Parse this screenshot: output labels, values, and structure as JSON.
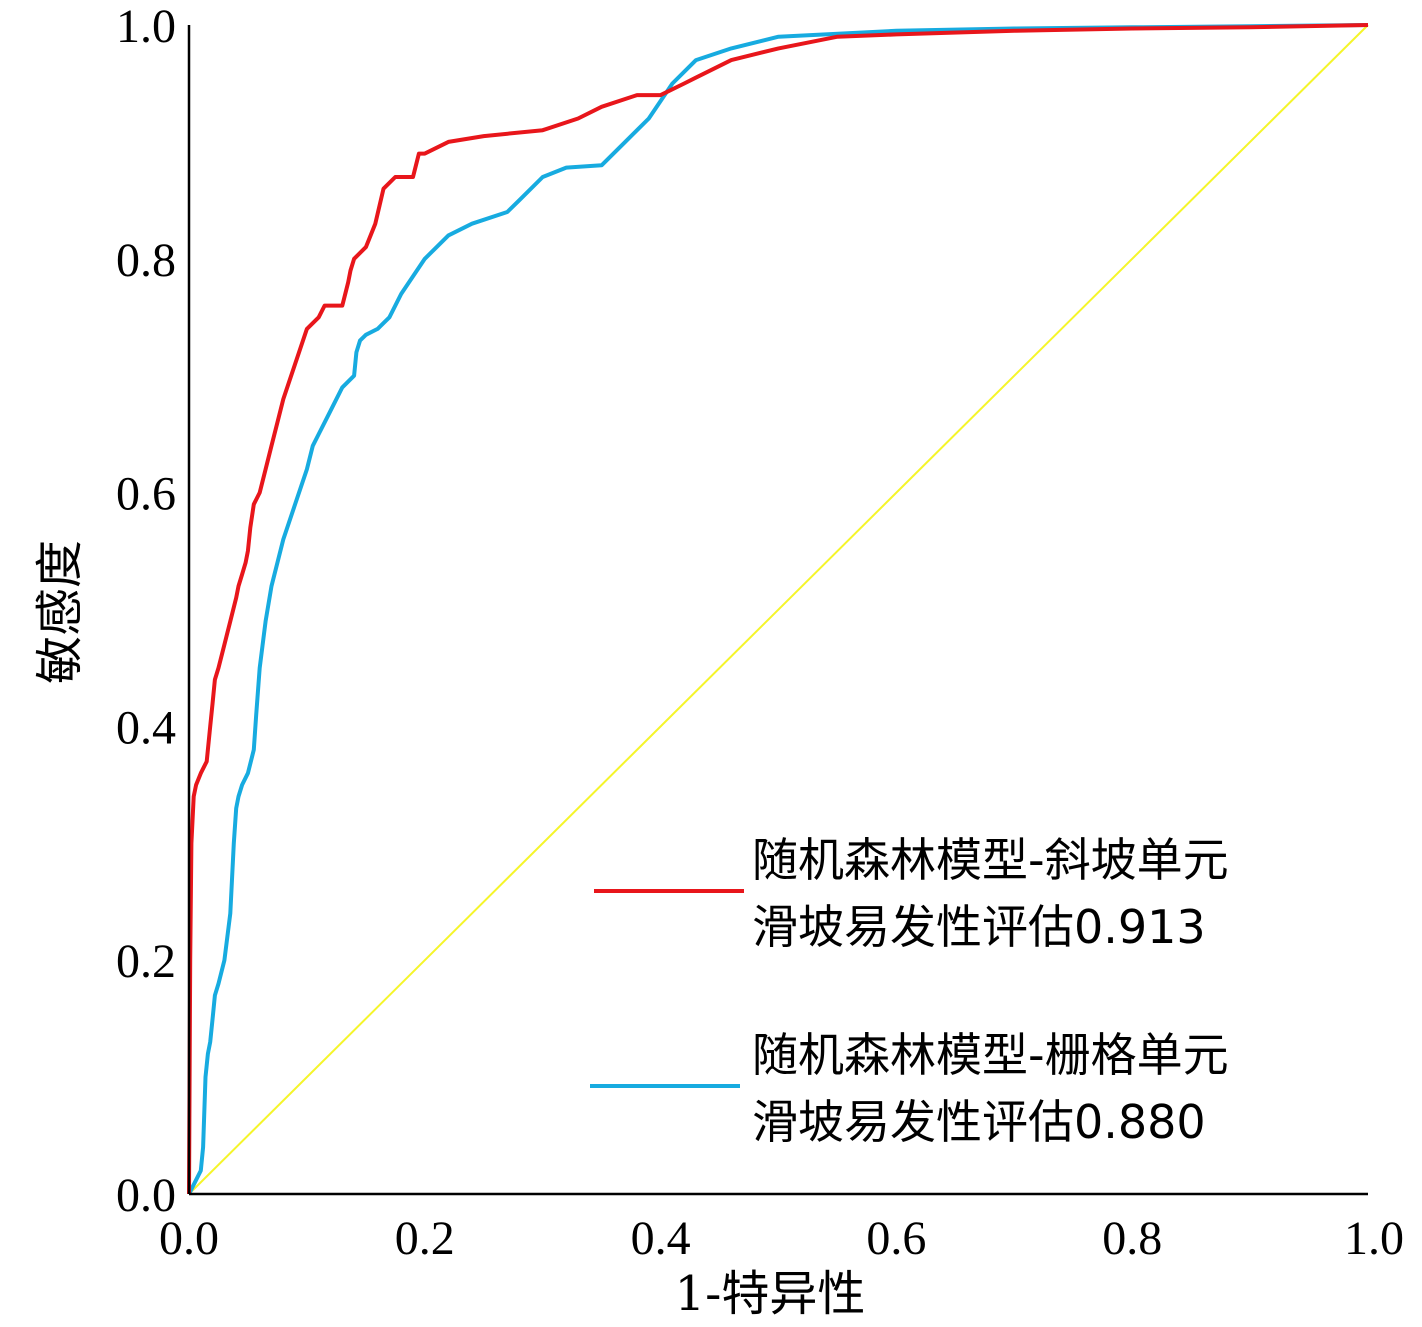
{
  "chart_data": {
    "type": "line",
    "xlabel": "1-特异性",
    "ylabel": "敏感度",
    "xlim": [
      0,
      1
    ],
    "ylim": [
      0,
      1
    ],
    "x_ticks": [
      "0.0",
      "0.2",
      "0.4",
      "0.6",
      "0.8",
      "1.0"
    ],
    "y_ticks": [
      "0.0",
      "0.2",
      "0.4",
      "0.6",
      "0.8",
      "1.0"
    ],
    "legend_position": "bottom-right",
    "grid": false,
    "series": [
      {
        "name_line1": "随机森林模型-斜坡单元",
        "name_line2": "滑坡易发性评估0.913",
        "color": "#e8161b",
        "x": [
          0,
          0.001,
          0.002,
          0.004,
          0.006,
          0.01,
          0.015,
          0.018,
          0.02,
          0.022,
          0.025,
          0.03,
          0.035,
          0.04,
          0.042,
          0.045,
          0.048,
          0.05,
          0.052,
          0.055,
          0.06,
          0.065,
          0.07,
          0.075,
          0.08,
          0.09,
          0.1,
          0.11,
          0.115,
          0.12,
          0.13,
          0.135,
          0.137,
          0.14,
          0.15,
          0.158,
          0.165,
          0.175,
          0.19,
          0.195,
          0.2,
          0.22,
          0.25,
          0.3,
          0.33,
          0.35,
          0.38,
          0.4,
          0.42,
          0.43,
          0.46,
          0.5,
          0.55,
          0.6,
          0.7,
          0.8,
          0.9,
          1.0
        ],
        "y": [
          0,
          0.2,
          0.3,
          0.34,
          0.35,
          0.36,
          0.37,
          0.4,
          0.42,
          0.44,
          0.45,
          0.47,
          0.49,
          0.51,
          0.52,
          0.53,
          0.54,
          0.55,
          0.57,
          0.59,
          0.6,
          0.62,
          0.64,
          0.66,
          0.68,
          0.71,
          0.74,
          0.75,
          0.76,
          0.76,
          0.76,
          0.78,
          0.79,
          0.8,
          0.81,
          0.83,
          0.86,
          0.87,
          0.87,
          0.89,
          0.89,
          0.9,
          0.905,
          0.91,
          0.92,
          0.93,
          0.94,
          0.94,
          0.95,
          0.955,
          0.97,
          0.98,
          0.99,
          0.992,
          0.995,
          0.997,
          0.998,
          1.0
        ]
      },
      {
        "name_line1": "随机森林模型-栅格单元",
        "name_line2": "滑坡易发性评估0.880",
        "color": "#17abe0",
        "x": [
          0,
          0.005,
          0.01,
          0.012,
          0.014,
          0.016,
          0.018,
          0.02,
          0.022,
          0.025,
          0.03,
          0.035,
          0.038,
          0.04,
          0.042,
          0.045,
          0.05,
          0.055,
          0.057,
          0.06,
          0.065,
          0.07,
          0.08,
          0.09,
          0.1,
          0.105,
          0.11,
          0.12,
          0.13,
          0.14,
          0.142,
          0.145,
          0.15,
          0.16,
          0.17,
          0.18,
          0.2,
          0.22,
          0.24,
          0.27,
          0.28,
          0.3,
          0.32,
          0.35,
          0.37,
          0.39,
          0.41,
          0.43,
          0.46,
          0.5,
          0.6,
          0.7,
          0.8,
          0.9,
          1.0
        ],
        "y": [
          0,
          0.01,
          0.02,
          0.04,
          0.1,
          0.12,
          0.13,
          0.15,
          0.17,
          0.18,
          0.2,
          0.24,
          0.3,
          0.33,
          0.34,
          0.35,
          0.36,
          0.38,
          0.41,
          0.45,
          0.49,
          0.52,
          0.56,
          0.59,
          0.62,
          0.64,
          0.65,
          0.67,
          0.69,
          0.7,
          0.72,
          0.73,
          0.735,
          0.74,
          0.75,
          0.77,
          0.8,
          0.82,
          0.83,
          0.84,
          0.85,
          0.87,
          0.878,
          0.88,
          0.9,
          0.92,
          0.95,
          0.97,
          0.98,
          0.99,
          0.995,
          0.997,
          0.998,
          0.999,
          1.0
        ]
      },
      {
        "name_line1": "",
        "name_line2": "",
        "color": "#f5f52a",
        "x": [
          0,
          1
        ],
        "y": [
          0,
          1
        ]
      }
    ]
  }
}
